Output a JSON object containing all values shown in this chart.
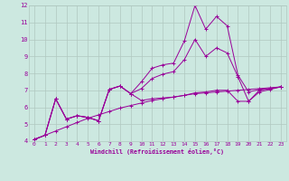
{
  "xlabel": "Windchill (Refroidissement éolien,°C)",
  "bg_color": "#cce8e0",
  "line_color": "#990099",
  "grid_color": "#b0c8c0",
  "xlim": [
    -0.5,
    23.5
  ],
  "ylim": [
    4,
    12
  ],
  "xticks": [
    0,
    1,
    2,
    3,
    4,
    5,
    6,
    7,
    8,
    9,
    10,
    11,
    12,
    13,
    14,
    15,
    16,
    17,
    18,
    19,
    20,
    21,
    22,
    23
  ],
  "yticks": [
    4,
    5,
    6,
    7,
    8,
    9,
    10,
    11,
    12
  ],
  "series1_x": [
    0,
    1,
    2,
    3,
    4,
    5,
    6,
    7,
    8,
    9,
    10,
    11,
    12,
    13,
    14,
    15,
    16,
    17,
    18,
    19,
    20,
    21,
    22,
    23
  ],
  "series1_y": [
    4.1,
    4.35,
    4.6,
    4.85,
    5.1,
    5.35,
    5.55,
    5.75,
    5.95,
    6.1,
    6.25,
    6.4,
    6.5,
    6.6,
    6.7,
    6.8,
    6.85,
    6.9,
    6.95,
    7.0,
    7.05,
    7.1,
    7.15,
    7.2
  ],
  "series2_x": [
    0,
    1,
    2,
    3,
    4,
    5,
    6,
    7,
    8,
    9,
    10,
    11,
    12,
    13,
    14,
    15,
    16,
    17,
    18,
    19,
    20,
    21,
    22,
    23
  ],
  "series2_y": [
    4.1,
    4.35,
    6.5,
    5.3,
    5.5,
    5.4,
    5.2,
    7.05,
    7.25,
    6.8,
    6.4,
    6.5,
    6.55,
    6.6,
    6.7,
    6.85,
    6.9,
    7.0,
    7.0,
    6.35,
    6.35,
    7.0,
    7.1,
    7.2
  ],
  "series3_x": [
    0,
    1,
    2,
    3,
    4,
    5,
    6,
    7,
    8,
    9,
    10,
    11,
    12,
    13,
    14,
    15,
    16,
    17,
    18,
    19,
    20,
    21,
    22,
    23
  ],
  "series3_y": [
    4.1,
    4.35,
    6.5,
    5.3,
    5.5,
    5.4,
    5.2,
    7.05,
    7.25,
    6.8,
    7.1,
    7.7,
    7.95,
    8.1,
    8.8,
    10.0,
    9.0,
    9.5,
    9.2,
    7.8,
    6.35,
    6.9,
    7.05,
    7.2
  ],
  "series4_x": [
    0,
    1,
    2,
    3,
    4,
    5,
    6,
    7,
    8,
    9,
    10,
    11,
    12,
    13,
    14,
    15,
    16,
    17,
    18,
    19,
    20,
    21,
    22,
    23
  ],
  "series4_y": [
    4.1,
    4.35,
    6.5,
    5.3,
    5.5,
    5.4,
    5.2,
    7.05,
    7.25,
    6.8,
    7.5,
    8.3,
    8.5,
    8.6,
    9.9,
    12.0,
    10.6,
    11.35,
    10.8,
    7.9,
    6.9,
    7.05,
    7.1,
    7.2
  ]
}
